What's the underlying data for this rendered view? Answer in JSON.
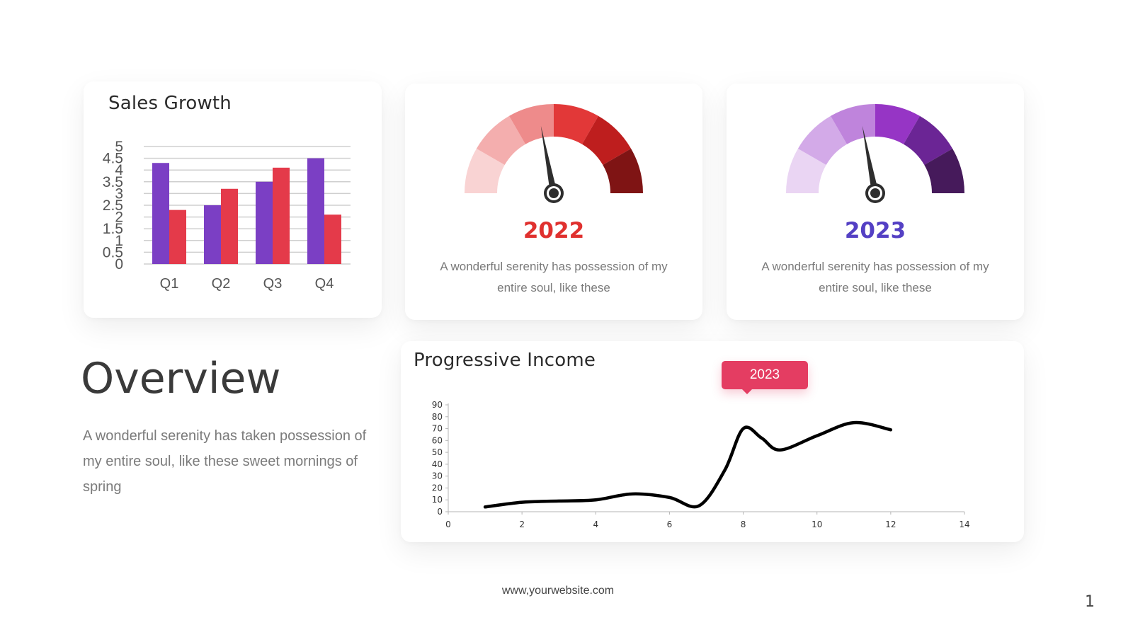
{
  "footer": {
    "url": "www,yourwebsite.com",
    "page_number": "1"
  },
  "overview": {
    "title": "Overview",
    "text": "A wonderful serenity has taken possession of my entire soul, like these sweet mornings of spring"
  },
  "gauges": [
    {
      "year": "2022",
      "year_color": "#e0312f",
      "description": "A wonderful serenity has possession of my entire soul, like these",
      "segment_colors": [
        "#f9d3d3",
        "#f4aeae",
        "#ee8b8b",
        "#e23838",
        "#be1e1e",
        "#7f1414"
      ],
      "needle_value": 0.44
    },
    {
      "year": "2023",
      "year_color": "#5440c4",
      "description": "A wonderful serenity has possession of my entire soul, like these",
      "segment_colors": [
        "#ead5f3",
        "#d3aae8",
        "#bf84dc",
        "#9635c5",
        "#6b2595",
        "#461a5b"
      ],
      "needle_value": 0.44
    }
  ],
  "tooltip": {
    "label": "2023",
    "color": "#e43d62"
  },
  "chart_data": [
    {
      "type": "bar",
      "title": "Sales Growth",
      "categories": [
        "Q1",
        "Q2",
        "Q3",
        "Q4"
      ],
      "series": [
        {
          "values": [
            4.3,
            2.5,
            3.5,
            4.5
          ],
          "color": "#7b3fc4"
        },
        {
          "values": [
            2.3,
            3.2,
            4.1,
            2.1
          ],
          "color": "#e43a4a"
        }
      ],
      "ylim": [
        0,
        5
      ],
      "yticks": [
        "0",
        "0.5",
        "1",
        "1.5",
        "2",
        "2.5",
        "3",
        "3.5",
        "4",
        "4.5",
        "5"
      ],
      "grid": true
    },
    {
      "type": "line",
      "title": "Progressive Income",
      "x": [
        1,
        2,
        3,
        4,
        5,
        6,
        6.8,
        7.5,
        8,
        8.5,
        9,
        10,
        11,
        12
      ],
      "y": [
        4,
        8,
        9,
        10,
        15,
        12,
        5,
        35,
        70,
        62,
        52,
        64,
        75,
        69
      ],
      "xlim": [
        0,
        14
      ],
      "ylim": [
        0,
        90
      ],
      "xticks": [
        "0",
        "2",
        "4",
        "6",
        "8",
        "10",
        "12",
        "14"
      ],
      "yticks": [
        "0",
        "10",
        "20",
        "30",
        "40",
        "50",
        "60",
        "70",
        "80",
        "90"
      ],
      "grid": false,
      "color": "#000000"
    }
  ]
}
